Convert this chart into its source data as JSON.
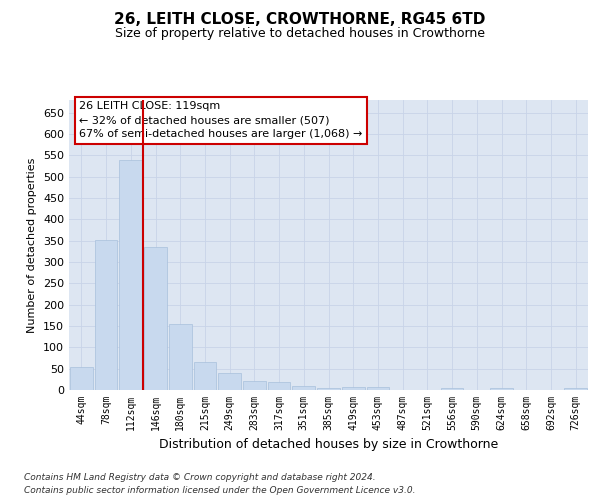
{
  "title": "26, LEITH CLOSE, CROWTHORNE, RG45 6TD",
  "subtitle": "Size of property relative to detached houses in Crowthorne",
  "xlabel": "Distribution of detached houses by size in Crowthorne",
  "ylabel": "Number of detached properties",
  "footer1": "Contains HM Land Registry data © Crown copyright and database right 2024.",
  "footer2": "Contains public sector information licensed under the Open Government Licence v3.0.",
  "annotation_line1": "26 LEITH CLOSE: 119sqm",
  "annotation_line2": "← 32% of detached houses are smaller (507)",
  "annotation_line3": "67% of semi-detached houses are larger (1,068) →",
  "bar_color": "#c8d9ee",
  "bar_edge_color": "#a8c0dc",
  "highlight_line_color": "#cc0000",
  "annotation_box_color": "#ffffff",
  "annotation_box_edge": "#cc0000",
  "background_color": "#ffffff",
  "grid_color": "#c8d4e8",
  "ax_bg_color": "#dde6f2",
  "categories": [
    "44sqm",
    "78sqm",
    "112sqm",
    "146sqm",
    "180sqm",
    "215sqm",
    "249sqm",
    "283sqm",
    "317sqm",
    "351sqm",
    "385sqm",
    "419sqm",
    "453sqm",
    "487sqm",
    "521sqm",
    "556sqm",
    "590sqm",
    "624sqm",
    "658sqm",
    "692sqm",
    "726sqm"
  ],
  "values": [
    55,
    352,
    540,
    335,
    155,
    65,
    40,
    20,
    18,
    10,
    5,
    8,
    8,
    0,
    0,
    4,
    0,
    4,
    0,
    0,
    4
  ],
  "ylim": [
    0,
    680
  ],
  "yticks": [
    0,
    50,
    100,
    150,
    200,
    250,
    300,
    350,
    400,
    450,
    500,
    550,
    600,
    650
  ],
  "red_line_x": 2.5,
  "title_fontsize": 11,
  "subtitle_fontsize": 9,
  "ylabel_fontsize": 8,
  "xlabel_fontsize": 9,
  "tick_fontsize": 7,
  "annotation_fontsize": 8,
  "footer_fontsize": 6.5
}
